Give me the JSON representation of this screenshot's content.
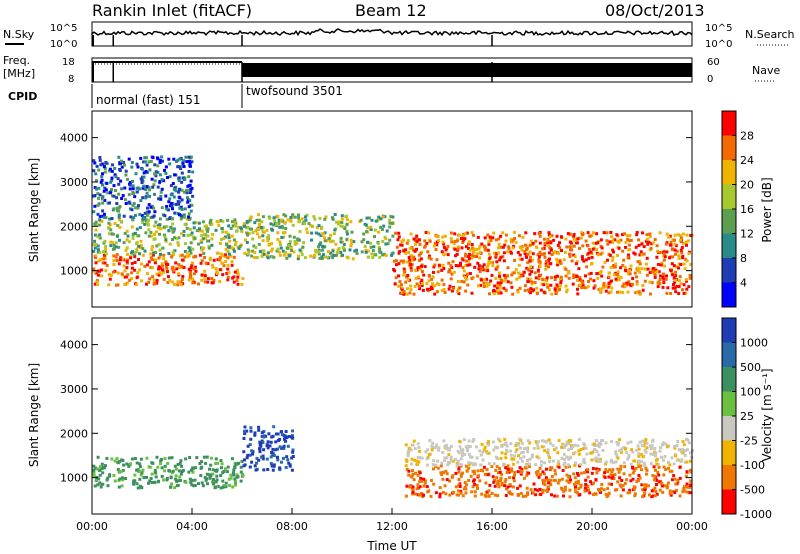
{
  "header": {
    "title": "Rankin Inlet (fitACF)",
    "beam": "Beam 12",
    "date": "08/Oct/2013"
  },
  "summary_panels": {
    "nsky_label": "N.Sky",
    "nsearch_label": "N.Search",
    "nsky_ticks": [
      "10^5",
      "10^0"
    ],
    "freq_label": "Freq.",
    "freq_unit": "[MHz]",
    "freq_ticks": [
      "18",
      "8"
    ],
    "nave_label": "Nave",
    "nave_ticks": [
      "60",
      "0"
    ],
    "cpid_label": "CPID",
    "cpid_modes": [
      {
        "name": "normal (fast) 151",
        "start_hour": 0.0,
        "end_hour": 6.0
      },
      {
        "name": "twofsound 3501",
        "start_hour": 6.0,
        "end_hour": 24.0
      }
    ]
  },
  "chart_data": [
    {
      "type": "heatmap",
      "parameter": "power",
      "ylabel": "Slant Range [km]",
      "ylim": [
        180,
        4600
      ],
      "yticks": [
        1000,
        2000,
        3000,
        4000
      ],
      "xlim": [
        0,
        24
      ],
      "colorbar": {
        "label": "Power [dB]",
        "ticks": [
          "28",
          "24",
          "20",
          "16",
          "12",
          "8",
          "4"
        ],
        "colors": [
          "#ff0000",
          "#f36a00",
          "#f0b400",
          "#a8c830",
          "#5aa050",
          "#2a8a8a",
          "#1e3cb4",
          "#0000ff"
        ]
      },
      "scatter_regions": [
        {
          "t0": 0.0,
          "t1": 6.0,
          "r0": 700,
          "r1": 1400,
          "value": "strong"
        },
        {
          "t0": 0.0,
          "t1": 6.0,
          "r0": 1400,
          "r1": 2200,
          "value": "medium"
        },
        {
          "t0": 0.0,
          "t1": 4.0,
          "r0": 2200,
          "r1": 3600,
          "value": "weak"
        },
        {
          "t0": 6.0,
          "t1": 12.0,
          "r0": 1300,
          "r1": 2300,
          "value": "medium"
        },
        {
          "t0": 12.0,
          "t1": 24.0,
          "r0": 500,
          "r1": 1900,
          "value": "strong"
        }
      ]
    },
    {
      "type": "heatmap",
      "parameter": "velocity",
      "ylabel": "Slant Range [km]",
      "xlabel": "Time UT",
      "ylim": [
        180,
        4600
      ],
      "yticks": [
        1000,
        2000,
        3000,
        4000
      ],
      "xlim": [
        0,
        24
      ],
      "xticks": [
        "00:00",
        "04:00",
        "08:00",
        "12:00",
        "16:00",
        "20:00",
        "00:00"
      ],
      "colorbar": {
        "label": "Velocity [m s⁻¹]",
        "ticks": [
          "1000",
          "500",
          "100",
          "25",
          "-25",
          "-100",
          "-500",
          "-1000"
        ],
        "colors": [
          "#1e3cb4",
          "#2a6aa8",
          "#3c9060",
          "#6cc040",
          "#c8c8c0",
          "#f0b400",
          "#f07800",
          "#ff0000"
        ]
      },
      "scatter_regions": [
        {
          "t0": 0.0,
          "t1": 6.0,
          "r0": 800,
          "r1": 1500,
          "value": "100"
        },
        {
          "t0": 6.0,
          "t1": 8.0,
          "r0": 1200,
          "r1": 2200,
          "value": "1000"
        },
        {
          "t0": 12.5,
          "t1": 24.0,
          "r0": 600,
          "r1": 1300,
          "value": "-500"
        },
        {
          "t0": 12.5,
          "t1": 24.0,
          "r0": 1300,
          "r1": 1900,
          "value": "-25"
        }
      ]
    }
  ]
}
